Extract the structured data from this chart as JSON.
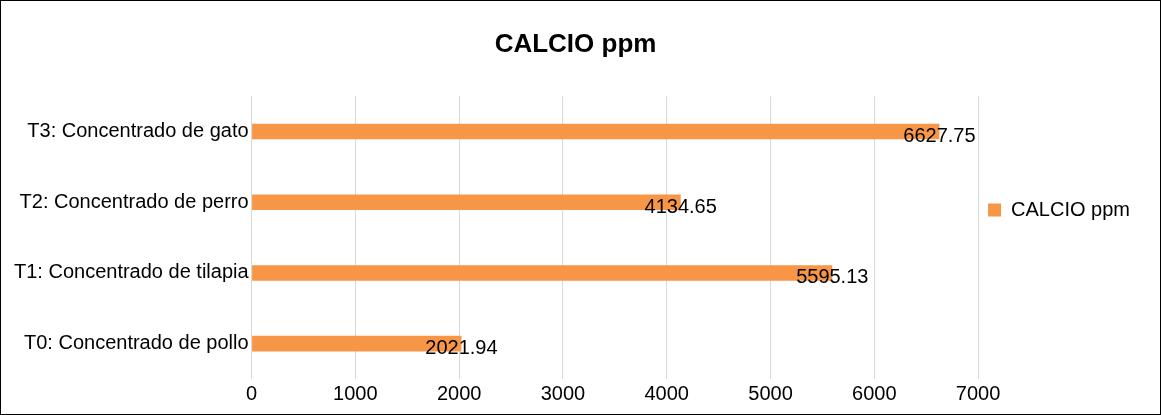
{
  "chart_data": {
    "type": "bar",
    "title": "CALCIO ppm",
    "orientation": "horizontal",
    "categories": [
      "T3: Concentrado de gato",
      "T2: Concentrado de perro",
      "T1: Concentrado de tilapia",
      "T0: Concentrado de pollo"
    ],
    "series": [
      {
        "name": "CALCIO ppm",
        "color": "#f79646",
        "values": [
          6627.75,
          4134.65,
          5595.13,
          2021.94
        ]
      }
    ],
    "xlim": [
      0,
      7000
    ],
    "xticks": [
      0,
      1000,
      2000,
      3000,
      4000,
      5000,
      6000,
      7000
    ],
    "grid": "x",
    "legend": "right",
    "data_labels": true
  }
}
